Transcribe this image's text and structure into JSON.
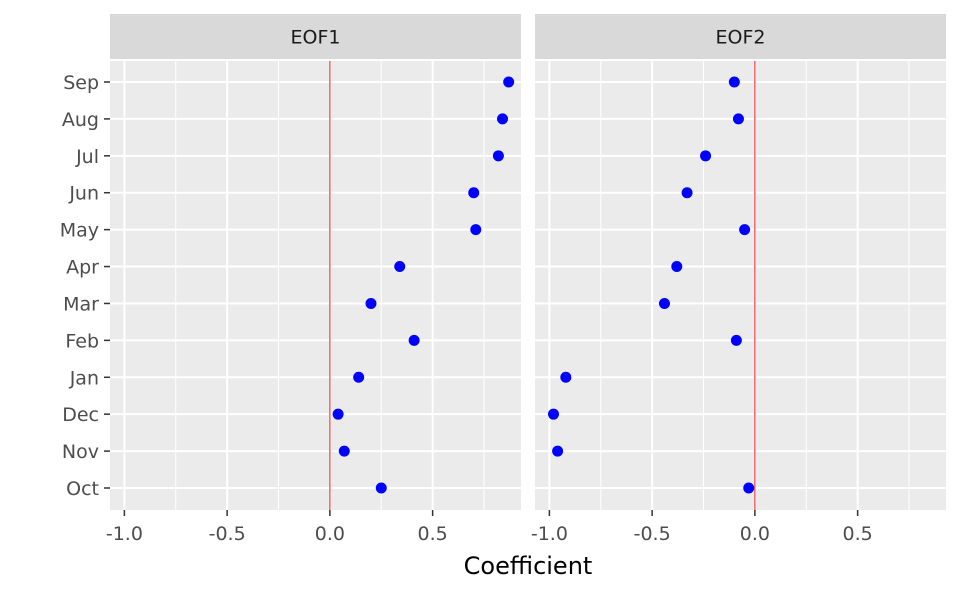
{
  "chart_data": {
    "type": "scatter",
    "xlabel": "Coefficient",
    "ylabel": "",
    "xlim": [
      -1.07,
      0.93
    ],
    "x_ticks": [
      -1.0,
      -0.5,
      0.0,
      0.5
    ],
    "x_tick_labels": [
      "-1.0",
      "-0.5",
      "0.0",
      "0.5"
    ],
    "categories": [
      "Oct",
      "Nov",
      "Dec",
      "Jan",
      "Feb",
      "Mar",
      "Apr",
      "May",
      "Jun",
      "Jul",
      "Aug",
      "Sep"
    ],
    "reference_line_x": 0,
    "reference_line_color": "#e41a1c",
    "point_color": "#0000ff",
    "panel_background": "#ebebeb",
    "strip_background": "#d9d9d9",
    "grid": true,
    "panels": [
      {
        "name": "EOF1",
        "values": [
          0.25,
          0.07,
          0.04,
          0.14,
          0.41,
          0.2,
          0.34,
          0.71,
          0.7,
          0.82,
          0.84,
          0.87
        ]
      },
      {
        "name": "EOF2",
        "values": [
          -0.03,
          -0.96,
          -0.98,
          -0.92,
          -0.09,
          -0.44,
          -0.38,
          -0.05,
          -0.33,
          -0.24,
          -0.08,
          -0.1
        ]
      }
    ]
  }
}
